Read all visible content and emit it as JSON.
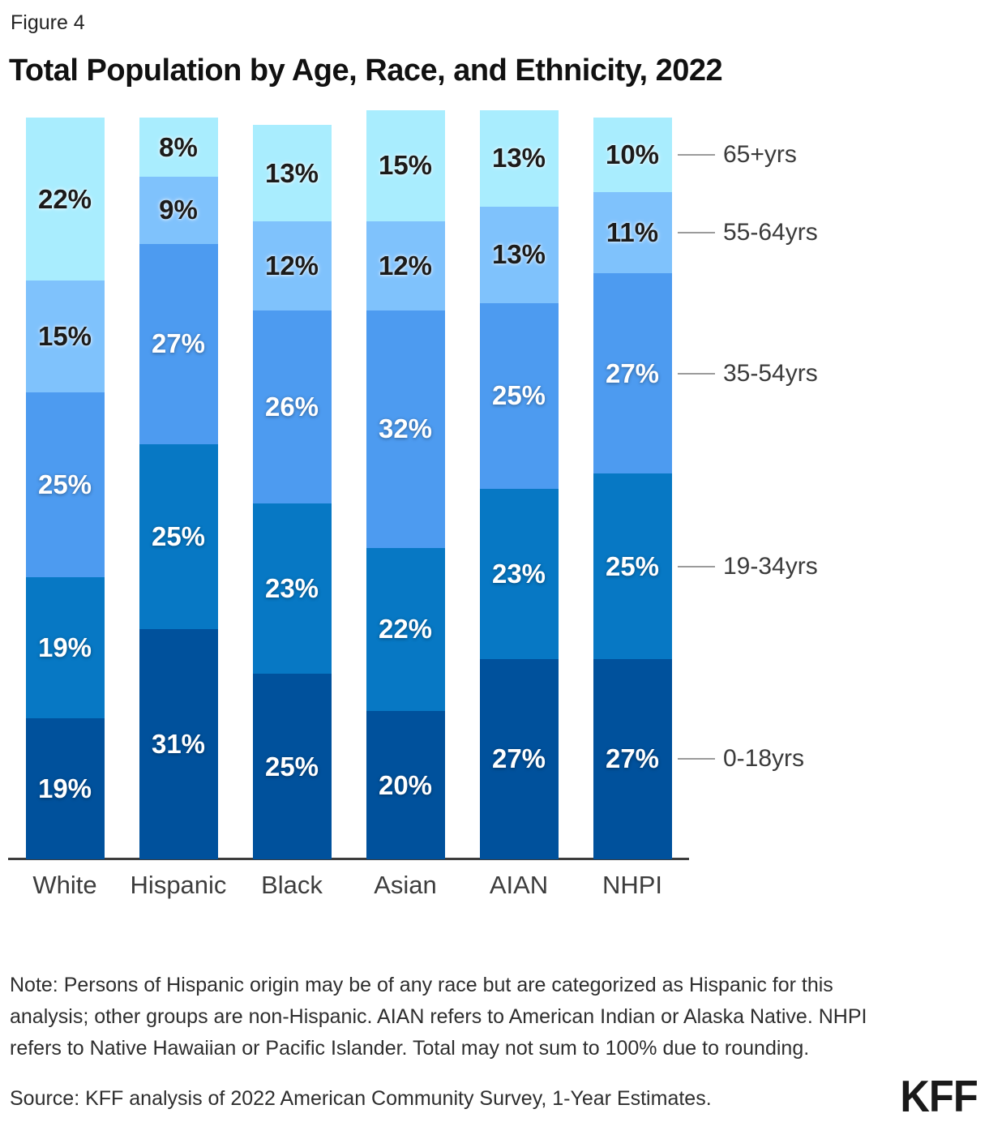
{
  "header": {
    "figure_label": "Figure 4",
    "title": "Total Population by Age, Race, and Ethnicity, 2022"
  },
  "chart_data": {
    "type": "bar",
    "stacked": true,
    "stack_unit": "percent",
    "title": "Total Population by Age, Race, and Ethnicity, 2022",
    "categories": [
      "White",
      "Hispanic",
      "Black",
      "Asian",
      "AIAN",
      "NHPI"
    ],
    "series": [
      {
        "name": "0-18yrs",
        "color": "#00519C",
        "values": [
          19,
          31,
          25,
          20,
          27,
          27
        ]
      },
      {
        "name": "19-34yrs",
        "color": "#0778C4",
        "values": [
          19,
          25,
          23,
          22,
          23,
          25
        ]
      },
      {
        "name": "35-54yrs",
        "color": "#4D9BF0",
        "values": [
          25,
          27,
          26,
          32,
          25,
          27
        ]
      },
      {
        "name": "55-64yrs",
        "color": "#7FC2FC",
        "values": [
          15,
          9,
          12,
          12,
          13,
          11
        ]
      },
      {
        "name": "65+yrs",
        "color": "#A9EDFE",
        "values": [
          22,
          8,
          13,
          15,
          13,
          10
        ]
      }
    ],
    "value_suffix": "%",
    "ylim": [
      0,
      101
    ],
    "grid": false,
    "legend_position": "right-inline-leader-lines",
    "data_labels": true
  },
  "notes": {
    "note": "Note: Persons of Hispanic origin may be of any race but are categorized as Hispanic for this analysis; other groups are non-Hispanic. AIAN refers to American Indian or Alaska Native. NHPI refers to Native Hawaiian or Pacific Islander. Total may not sum to 100% due to rounding.",
    "source": "Source: KFF analysis of 2022 American Community Survey, 1-Year Estimates."
  },
  "branding": {
    "logo": "KFF"
  }
}
